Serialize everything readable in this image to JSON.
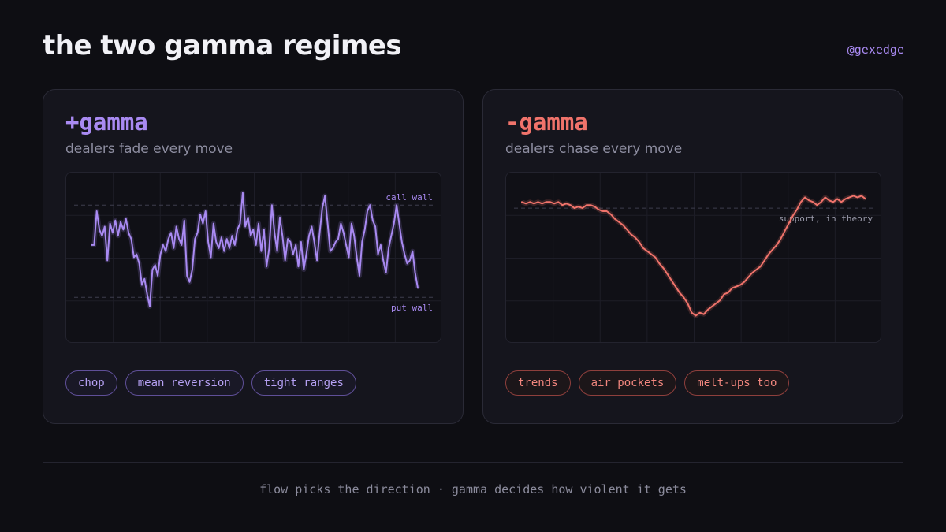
{
  "header": {
    "title": "the two gamma regimes",
    "handle": "@gexedge"
  },
  "cards": {
    "positive": {
      "title": "+gamma",
      "subtitle": "dealers fade every move",
      "tags": [
        "chop",
        "mean reversion",
        "tight ranges"
      ],
      "color": "#a98af2"
    },
    "negative": {
      "title": "-gamma",
      "subtitle": "dealers chase every move",
      "tags": [
        "trends",
        "air pockets",
        "melt-ups too"
      ],
      "color": "#f0736b"
    }
  },
  "footer": {
    "text": "flow picks the direction · gamma decides how violent it gets"
  },
  "chart_data": [
    {
      "type": "line",
      "title": "",
      "grid": true,
      "ylim": [
        0,
        100
      ],
      "reference_lines": [
        {
          "label": "call wall",
          "y": 84
        },
        {
          "label": "put wall",
          "y": 24
        }
      ],
      "series": [
        {
          "values": [
            58,
            58,
            80,
            68,
            64,
            70,
            48,
            72,
            66,
            74,
            64,
            73,
            68,
            75,
            66,
            62,
            50,
            52,
            46,
            32,
            36,
            26,
            18,
            42,
            45,
            38,
            52,
            58,
            54,
            62,
            66,
            56,
            70,
            62,
            58,
            74,
            38,
            34,
            42,
            62,
            66,
            78,
            72,
            80,
            60,
            50,
            72,
            60,
            56,
            63,
            54,
            62,
            56,
            64,
            58,
            68,
            72,
            92,
            70,
            76,
            64,
            68,
            58,
            72,
            54,
            68,
            44,
            56,
            84,
            66,
            54,
            76,
            64,
            48,
            62,
            60,
            52,
            58,
            44,
            60,
            42,
            52,
            64,
            70,
            60,
            48,
            66,
            82,
            90,
            72,
            54,
            56,
            60,
            62,
            72,
            66,
            58,
            50,
            72,
            64,
            50,
            38,
            60,
            68,
            80,
            84,
            74,
            70,
            52,
            58,
            48,
            40,
            56,
            64,
            72,
            84,
            72,
            60,
            52,
            46,
            48,
            54,
            40,
            30
          ]
        }
      ]
    },
    {
      "type": "line",
      "title": "",
      "grid": true,
      "ylim": [
        0,
        100
      ],
      "reference_lines": [
        {
          "label": "support, in theory",
          "y": 82
        }
      ],
      "series": [
        {
          "values": [
            86,
            85,
            86,
            85,
            86,
            85,
            86,
            86,
            85,
            86,
            84,
            85,
            84,
            82,
            83,
            82,
            84,
            84,
            83,
            81,
            80,
            80,
            78,
            75,
            73,
            71,
            68,
            65,
            63,
            60,
            56,
            54,
            52,
            50,
            46,
            43,
            39,
            35,
            31,
            27,
            24,
            20,
            14,
            12,
            14,
            13,
            16,
            18,
            20,
            22,
            26,
            27,
            30,
            31,
            32,
            34,
            37,
            40,
            42,
            44,
            48,
            52,
            55,
            58,
            62,
            67,
            72,
            77,
            81,
            86,
            89,
            87,
            86,
            84,
            86,
            89,
            87,
            86,
            88,
            86,
            88,
            89,
            90,
            89,
            90,
            88
          ]
        }
      ]
    }
  ]
}
